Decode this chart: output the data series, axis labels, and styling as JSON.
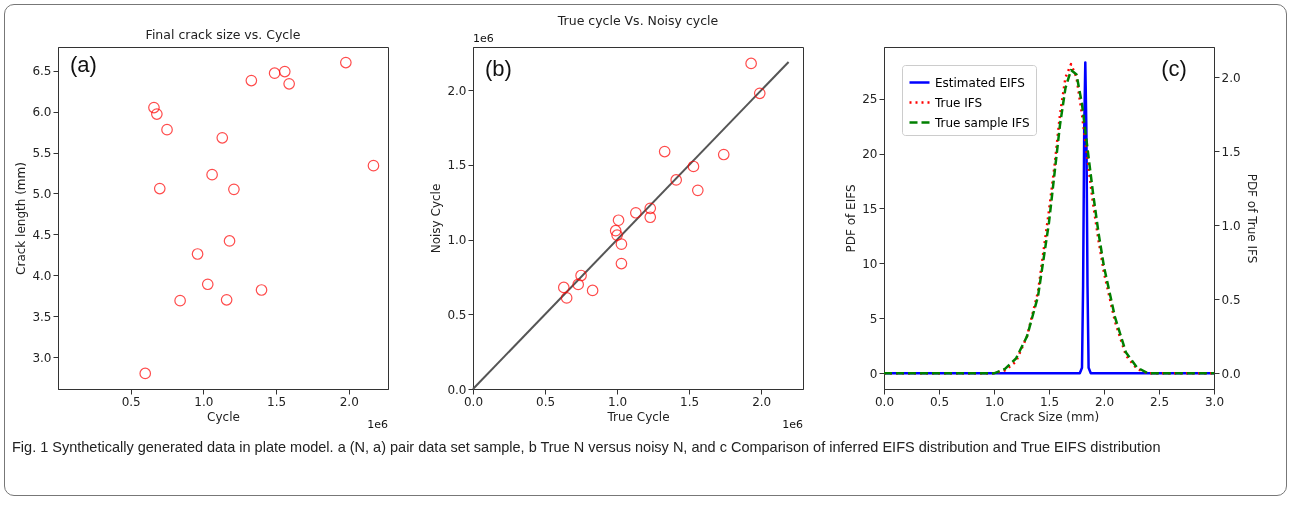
{
  "chart_data": [
    {
      "type": "scatter",
      "title": "Final crack size vs. Cycle",
      "xlabel": "Cycle",
      "ylabel": "Crack length (mm)",
      "marker": "circle",
      "grid": false,
      "annotations": [
        "(a)",
        "1e6",
        "Fig. 1 Synthetically generated data in plate model. a (N, a) pair data set sample, b True N versus noisy N, and c Comparison of inferred EIFS distribution and True EIFS distribution"
      ],
      "xlim": [
        0,
        2.27
      ],
      "xticks": [
        0.5,
        {
          "value": 1,
          "label": "1.0"
        },
        1.5,
        {
          "value": 2,
          "label": "2.0"
        }
      ],
      "ylim": [
        2.61,
        6.79
      ],
      "yticks": [
        {
          "value": 3,
          "label": "3.0"
        },
        3.5,
        {
          "value": 4,
          "label": "4.0"
        },
        4.5,
        {
          "value": 5,
          "label": "5.0"
        },
        5.5,
        {
          "value": 6,
          "label": "6.0"
        },
        6.5
      ],
      "series": [
        {
          "color": "#ff0000",
          "x": [
            1.98,
            1.33,
            1.49,
            1.56,
            1.59,
            0.66,
            0.68,
            0.75,
            1.13,
            2.17,
            1.06,
            0.7,
            1.21,
            1.18,
            0.96,
            1.03,
            1.4,
            0.84,
            1.16,
            0.6
          ],
          "values": [
            6.6,
            6.38,
            6.47,
            6.49,
            6.34,
            6.05,
            5.97,
            5.78,
            5.68,
            5.34,
            5.23,
            5.06,
            5.05,
            4.42,
            4.26,
            3.89,
            3.82,
            3.69,
            3.7,
            2.8
          ]
        }
      ]
    },
    {
      "type": "scatter",
      "title": "True cycle Vs. Noisy cycle",
      "xlabel": "True Cycle",
      "ylabel": "Noisy Cycle",
      "marker": "circle",
      "grid": false,
      "annotations": [
        "(b)",
        "1e6",
        "1e6"
      ],
      "xlim": [
        0,
        2.29
      ],
      "xticks": [
        {
          "value": 0,
          "label": "0.0"
        },
        0.5,
        {
          "value": 1,
          "label": "1.0"
        },
        1.5,
        {
          "value": 2,
          "label": "2.0"
        }
      ],
      "ylim": [
        0,
        2.29
      ],
      "yticks": [
        {
          "value": 0,
          "label": "0.0"
        },
        0.5,
        {
          "value": 1,
          "label": "1.0"
        },
        1.5,
        {
          "value": 2,
          "label": "2.0"
        }
      ],
      "series": [
        {
          "type": "line",
          "color": "#555555",
          "line_style": "solid",
          "marker": "none",
          "x": [
            0,
            2.19
          ],
          "values": [
            0,
            2.19
          ]
        },
        {
          "color": "#ff0000",
          "x": [
            1.93,
            1.99,
            1.33,
            1.74,
            1.53,
            1.41,
            1.56,
            1.13,
            1.23,
            1.23,
            1.01,
            0.99,
            1.0,
            1.03,
            1.03,
            0.75,
            0.73,
            0.63,
            0.83,
            0.65
          ],
          "values": [
            2.18,
            1.98,
            1.59,
            1.57,
            1.49,
            1.4,
            1.33,
            1.18,
            1.21,
            1.15,
            1.13,
            1.06,
            1.03,
            0.97,
            0.84,
            0.76,
            0.7,
            0.68,
            0.66,
            0.61
          ]
        }
      ]
    },
    {
      "type": "line",
      "xlabel": "Crack Size (mm)",
      "ylabel": "PDF of EIFS",
      "y2label": "PDF of True IFS",
      "legend": "top left",
      "marker": "none",
      "grid": false,
      "annotations": [
        "(c)"
      ],
      "xlim": [
        0,
        3
      ],
      "xticks": [
        {
          "value": 0,
          "label": "0.0"
        },
        0.5,
        {
          "value": 1,
          "label": "1.0"
        },
        1.5,
        {
          "value": 2,
          "label": "2.0"
        },
        2.5,
        {
          "value": 3,
          "label": "3.0"
        }
      ],
      "ylim": [
        -1.43,
        29.7
      ],
      "yticks": [
        0,
        5,
        10,
        15,
        20,
        25
      ],
      "y2lim": [
        -0.106,
        2.206
      ],
      "y2ticks": [
        {
          "value": 0,
          "label": "0.0"
        },
        0.5,
        {
          "value": 1,
          "label": "1.0"
        },
        1.5,
        {
          "value": 2,
          "label": "2.0"
        }
      ],
      "series": [
        {
          "name": "Estimated EIFS",
          "color": "#0000ff",
          "line_style": "solid",
          "x": [
            0,
            1.78,
            1.8,
            1.81,
            1.82,
            1.83,
            1.84,
            1.85,
            1.86,
            1.88,
            3
          ],
          "values": [
            0,
            0,
            0.5,
            8,
            22,
            28.3,
            22,
            8,
            0.5,
            0,
            0
          ]
        },
        {
          "name": "True IFS",
          "color": "#ff0000",
          "line_style": "dotted",
          "axis": "y2",
          "x": [
            0,
            1.0,
            1.1,
            1.2,
            1.3,
            1.4,
            1.5,
            1.55,
            1.6,
            1.65,
            1.7,
            1.75,
            1.8,
            1.85,
            1.9,
            1.95,
            2.0,
            2.1,
            2.2,
            2.3,
            2.4,
            3.0
          ],
          "values": [
            0,
            0,
            0.02,
            0.08,
            0.25,
            0.55,
            1.1,
            1.4,
            1.75,
            2.0,
            2.09,
            2.0,
            1.75,
            1.45,
            1.15,
            0.9,
            0.68,
            0.35,
            0.12,
            0.03,
            0,
            0
          ]
        },
        {
          "name": "True sample IFS",
          "color": "#008000",
          "line_style": "dashed",
          "axis": "y2",
          "x": [
            0,
            1.0,
            1.1,
            1.2,
            1.3,
            1.4,
            1.5,
            1.55,
            1.6,
            1.65,
            1.7,
            1.75,
            1.8,
            1.85,
            1.9,
            1.95,
            2.0,
            2.1,
            2.2,
            2.3,
            2.4,
            3.0
          ],
          "values": [
            0,
            0,
            0.03,
            0.1,
            0.25,
            0.52,
            1.02,
            1.35,
            1.68,
            1.93,
            2.05,
            2.02,
            1.82,
            1.52,
            1.22,
            0.95,
            0.72,
            0.38,
            0.14,
            0.04,
            0,
            0
          ]
        }
      ]
    }
  ]
}
